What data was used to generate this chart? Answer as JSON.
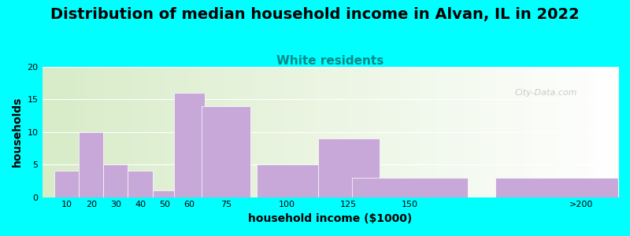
{
  "title": "Distribution of median household income in Alvan, IL in 2022",
  "subtitle": "White residents",
  "xlabel": "household income ($1000)",
  "ylabel": "households",
  "bar_labels": [
    "10",
    "20",
    "30",
    "40",
    "50",
    "60",
    "75",
    "100",
    "125",
    "150",
    ">200"
  ],
  "bar_heights": [
    4,
    10,
    5,
    4,
    1,
    16,
    14,
    5,
    9,
    3,
    3
  ],
  "bar_color": "#C8A8D8",
  "bar_edgecolor": "#C8A8D8",
  "ylim": [
    0,
    20
  ],
  "yticks": [
    0,
    5,
    10,
    15,
    20
  ],
  "bg_outer": "#00FFFF",
  "bg_plot_left": "#D8ECC8",
  "bg_plot_right": "#FFFFFF",
  "title_fontsize": 14,
  "subtitle_color": "#008888",
  "subtitle_fontsize": 11,
  "axis_label_fontsize": 10,
  "tick_fontsize": 8,
  "watermark": "City-Data.com"
}
